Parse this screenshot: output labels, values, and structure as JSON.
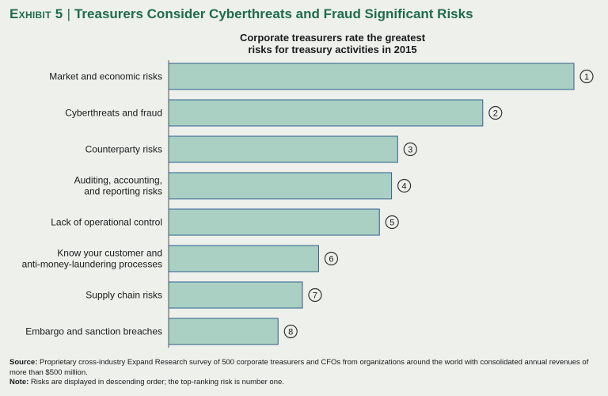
{
  "exhibit": {
    "label": "Exhibit 5",
    "title": "Treasurers Consider Cyberthreats and Fraud Significant Risks"
  },
  "chart_data": {
    "type": "bar",
    "orientation": "horizontal",
    "title_lines": [
      "Corporate treasurers rate the greatest",
      "risks for treasury activities in 2015"
    ],
    "categories": [
      [
        "Market and economic risks"
      ],
      [
        "Cyberthreats and fraud"
      ],
      [
        "Counterparty risks"
      ],
      [
        "Auditing, accounting,",
        "and reporting risks"
      ],
      [
        "Lack of operational control"
      ],
      [
        "Know your customer and",
        "anti-money-laundering processes"
      ],
      [
        "Supply chain risks"
      ],
      [
        "Embargo and sanction breaches"
      ]
    ],
    "values": [
      100,
      77.5,
      56.5,
      55,
      52,
      37,
      33,
      27
    ],
    "ranks": [
      "1",
      "2",
      "3",
      "4",
      "5",
      "6",
      "7",
      "8"
    ],
    "bar_color": "#a9d0c2",
    "bar_stroke": "#2f5f8f"
  },
  "notes": {
    "source_label": "Source:",
    "source_text": "Proprietary cross-industry Expand Research survey of 500 corporate treasurers and CFOs from organizations around the world with consolidated annual revenues of more than $500 million.",
    "note_label": "Note:",
    "note_text": "Risks are displayed in descending order; the top-ranking risk is number one."
  }
}
